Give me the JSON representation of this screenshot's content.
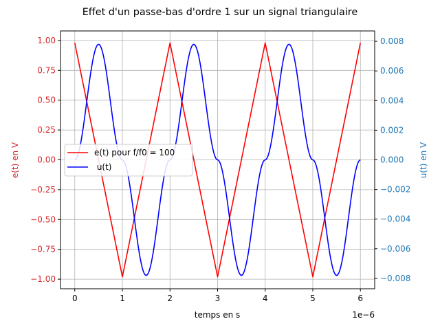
{
  "chart_data": {
    "type": "line",
    "title": "Effet d'un passe-bas d'ordre 1 sur un signal triangulaire",
    "xlabel": "temps en s",
    "x_offset_label": "1e−6",
    "x_scale": 1e-06,
    "xlim": [
      -0.3,
      6.3
    ],
    "x_ticks": [
      0,
      1,
      2,
      3,
      4,
      5,
      6
    ],
    "x_tick_labels": [
      "0",
      "1",
      "2",
      "3",
      "4",
      "5",
      "6"
    ],
    "ylabel_left": "e(t) en V",
    "ylim_left": [
      -1.08,
      1.08
    ],
    "y_ticks_left": [
      -1.0,
      -0.75,
      -0.5,
      -0.25,
      0.0,
      0.25,
      0.5,
      0.75,
      1.0
    ],
    "y_tick_labels_left": [
      "−1.00",
      "−0.75",
      "−0.50",
      "−0.25",
      "0.00",
      "0.25",
      "0.50",
      "0.75",
      "1.00"
    ],
    "ylabel_right": "u(t) en V",
    "ylim_right": [
      -0.0087,
      0.0087
    ],
    "y_ticks_right": [
      -0.008,
      -0.006,
      -0.004,
      -0.002,
      0.0,
      0.002,
      0.004,
      0.006,
      0.008
    ],
    "y_tick_labels_right": [
      "−0.008",
      "−0.006",
      "−0.004",
      "−0.002",
      "0.000",
      "0.002",
      "0.004",
      "0.006",
      "0.008"
    ],
    "grid": true,
    "legend_position": "center-left",
    "series": [
      {
        "name": "e(t) pour f/f0 = 100",
        "axis": "left",
        "color": "#ff0000",
        "x": [
          0,
          1,
          2,
          3,
          4,
          5,
          6
        ],
        "y": [
          0.98,
          -0.98,
          0.98,
          -0.98,
          0.98,
          -0.98,
          0.98
        ]
      },
      {
        "name": " u(t)",
        "axis": "right",
        "color": "#0000ff",
        "x": [
          0,
          0.5,
          1,
          1.5,
          2,
          2.5,
          3,
          3.5,
          4,
          4.5,
          5,
          5.5,
          6
        ],
        "y": [
          0.0,
          0.0078,
          0.0,
          -0.0078,
          0.0,
          0.0078,
          0.0,
          -0.0078,
          0.0,
          0.0078,
          0.0,
          -0.0078,
          0.0
        ]
      }
    ],
    "colors": {
      "left_axis": "#d62728",
      "right_axis": "#1f77b4",
      "grid": "#b0b0b0"
    }
  }
}
